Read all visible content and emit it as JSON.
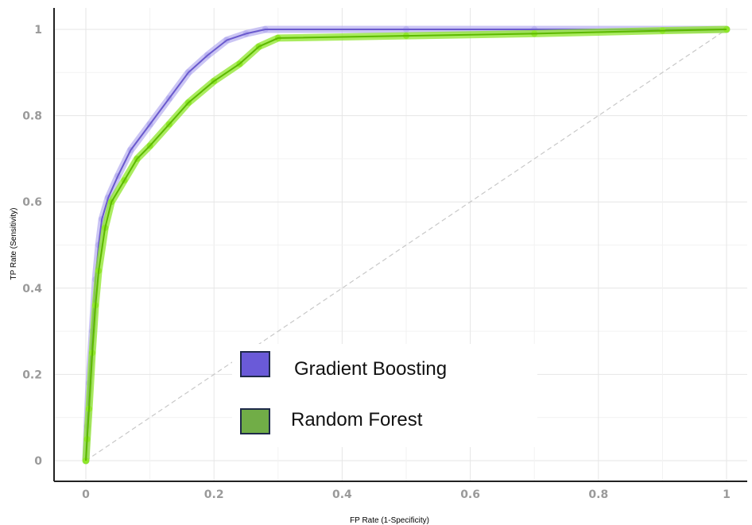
{
  "chart_data": {
    "type": "line",
    "title": "",
    "xlabel": "FP Rate (1-Specificity)",
    "ylabel": "TP Rate (Sensitivity)",
    "xlim": [
      0,
      1
    ],
    "ylim": [
      0,
      1
    ],
    "xticks": [
      0,
      0.2,
      0.4,
      0.6,
      0.8,
      1
    ],
    "yticks": [
      0,
      0.2,
      0.4,
      0.6,
      0.8,
      1
    ],
    "xtick_labels": [
      "0",
      "0.2",
      "0.4",
      "0.6",
      "0.8",
      "1"
    ],
    "ytick_labels": [
      "0",
      "0.2",
      "0.4",
      "0.6",
      "0.8",
      "1"
    ],
    "grid": true,
    "legend_position": "center",
    "diagonal_reference": true,
    "series": [
      {
        "name": "Gradient Boosting",
        "color": "#6a5acd",
        "band_color": "#b9b2f0",
        "points": [
          [
            0,
            0
          ],
          [
            0.002,
            0.08
          ],
          [
            0.005,
            0.18
          ],
          [
            0.01,
            0.3
          ],
          [
            0.015,
            0.42
          ],
          [
            0.02,
            0.5
          ],
          [
            0.025,
            0.56
          ],
          [
            0.035,
            0.61
          ],
          [
            0.05,
            0.66
          ],
          [
            0.07,
            0.72
          ],
          [
            0.1,
            0.78
          ],
          [
            0.13,
            0.84
          ],
          [
            0.16,
            0.9
          ],
          [
            0.19,
            0.94
          ],
          [
            0.22,
            0.975
          ],
          [
            0.25,
            0.99
          ],
          [
            0.28,
            1.0
          ],
          [
            0.5,
            1.0
          ],
          [
            0.7,
            1.0
          ],
          [
            1.0,
            1.0
          ]
        ]
      },
      {
        "name": "Random Forest",
        "color": "#5cb800",
        "band_color": "#8ee62a",
        "points": [
          [
            0,
            0
          ],
          [
            0.002,
            0.05
          ],
          [
            0.005,
            0.12
          ],
          [
            0.01,
            0.25
          ],
          [
            0.015,
            0.36
          ],
          [
            0.02,
            0.44
          ],
          [
            0.03,
            0.54
          ],
          [
            0.04,
            0.6
          ],
          [
            0.06,
            0.65
          ],
          [
            0.08,
            0.7
          ],
          [
            0.1,
            0.73
          ],
          [
            0.13,
            0.78
          ],
          [
            0.16,
            0.83
          ],
          [
            0.2,
            0.88
          ],
          [
            0.24,
            0.92
          ],
          [
            0.27,
            0.96
          ],
          [
            0.3,
            0.98
          ],
          [
            0.5,
            0.985
          ],
          [
            0.7,
            0.99
          ],
          [
            0.9,
            0.997
          ],
          [
            1.0,
            1.0
          ]
        ]
      }
    ]
  }
}
